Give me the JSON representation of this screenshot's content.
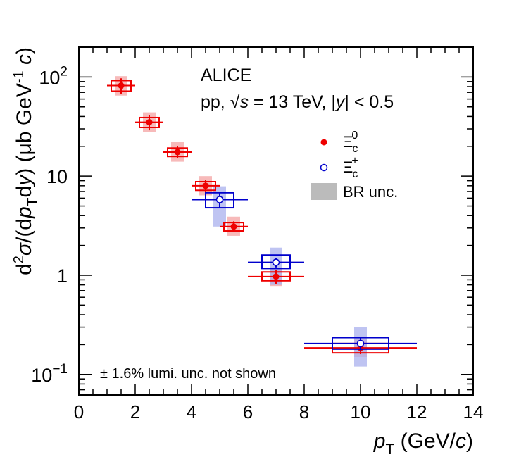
{
  "chart_data": {
    "type": "scatter",
    "log_y": true,
    "xlim": [
      0,
      14
    ],
    "ylim": [
      0.062,
      200
    ],
    "x_ticks": [
      0,
      2,
      4,
      6,
      8,
      10,
      12,
      14
    ],
    "y_ticks": [
      {
        "value": 100,
        "base": "10",
        "exp": "2"
      },
      {
        "value": 10,
        "text": "10"
      },
      {
        "value": 1,
        "text": "1"
      },
      {
        "value": 0.1,
        "base": "10",
        "exp": "−1"
      }
    ],
    "xlabel": {
      "var": "p",
      "sub": "T",
      "rest": " (GeV/",
      "c": "c",
      "close": ")"
    },
    "ylabel": "d²σ/(dp_T dy) (μb GeV⁻¹ c)",
    "annotations": {
      "experiment": "ALICE",
      "system_pp": "pp, ",
      "sqrt": "√",
      "s": "s",
      "energy": " = 13 TeV, |",
      "y": "y",
      "rapidity": "| < 0.5",
      "lumi": "± 1.6% lumi. unc. not shown"
    },
    "legend": {
      "placement": "top-right",
      "entries": [
        {
          "label": "Ξ",
          "sub": "c",
          "sup": "0",
          "marker": "filled-circle",
          "color": "#ee0000"
        },
        {
          "label": "Ξ",
          "sub": "c",
          "sup": "+",
          "marker": "open-circle",
          "color": "#0000cc"
        },
        {
          "label": "BR unc.",
          "marker": "band",
          "color": "#bbbbbb"
        }
      ]
    },
    "series": [
      {
        "name": "Xi_c^0",
        "color": "#ee0000",
        "band_color": "#f4a3a3",
        "points": [
          {
            "x": 1.5,
            "xlo": 1.0,
            "xhi": 2.0,
            "y": 82,
            "stat_lo": 68,
            "stat_hi": 97,
            "sys_lo": 72,
            "sys_hi": 92,
            "br_lo": 65,
            "br_hi": 102
          },
          {
            "x": 2.5,
            "xlo": 2.0,
            "xhi": 3.0,
            "y": 35,
            "stat_lo": 29,
            "stat_hi": 41,
            "sys_lo": 31,
            "sys_hi": 39,
            "br_lo": 28,
            "br_hi": 44
          },
          {
            "x": 3.5,
            "xlo": 3.0,
            "xhi": 4.0,
            "y": 17.5,
            "stat_lo": 15.2,
            "stat_hi": 20,
            "sys_lo": 15.8,
            "sys_hi": 19.2,
            "br_lo": 14,
            "br_hi": 22
          },
          {
            "x": 4.5,
            "xlo": 4.0,
            "xhi": 5.0,
            "y": 8.0,
            "stat_lo": 7.0,
            "stat_hi": 9.2,
            "sys_lo": 7.2,
            "sys_hi": 8.8,
            "br_lo": 6.4,
            "br_hi": 10
          },
          {
            "x": 5.5,
            "xlo": 5.0,
            "xhi": 6.0,
            "y": 3.1,
            "stat_lo": 2.75,
            "stat_hi": 3.5,
            "sys_lo": 2.8,
            "sys_hi": 3.4,
            "br_lo": 2.5,
            "br_hi": 3.9
          },
          {
            "x": 7.0,
            "xlo": 6.0,
            "xhi": 8.0,
            "y": 0.97,
            "stat_lo": 0.82,
            "stat_hi": 1.12,
            "sys_lo": 0.88,
            "sys_hi": 1.08,
            "br_lo": 0.78,
            "br_hi": 1.2
          },
          {
            "x": 10.0,
            "xlo": 8.0,
            "xhi": 12.0,
            "y": 0.185,
            "stat_lo": 0.16,
            "stat_hi": 0.215,
            "sys_lo": 0.165,
            "sys_hi": 0.205,
            "br_lo": 0.15,
            "br_hi": 0.23
          }
        ]
      },
      {
        "name": "Xi_c^+",
        "color": "#0000cc",
        "band_color": "#aab0ee",
        "points": [
          {
            "x": 5.0,
            "xlo": 4.0,
            "xhi": 6.0,
            "y": 5.8,
            "stat_lo": 4.8,
            "stat_hi": 6.8,
            "sys_lo": 4.8,
            "sys_hi": 6.8,
            "br_lo": 3.1,
            "br_hi": 7.9
          },
          {
            "x": 7.0,
            "xlo": 6.0,
            "xhi": 8.0,
            "y": 1.35,
            "stat_lo": 1.2,
            "stat_hi": 1.5,
            "sys_lo": 1.17,
            "sys_hi": 1.6,
            "br_lo": 0.8,
            "br_hi": 1.9
          },
          {
            "x": 10.0,
            "xlo": 8.0,
            "xhi": 12.0,
            "y": 0.205,
            "stat_lo": 0.175,
            "stat_hi": 0.235,
            "sys_lo": 0.18,
            "sys_hi": 0.235,
            "br_lo": 0.12,
            "br_hi": 0.3
          }
        ]
      }
    ]
  }
}
